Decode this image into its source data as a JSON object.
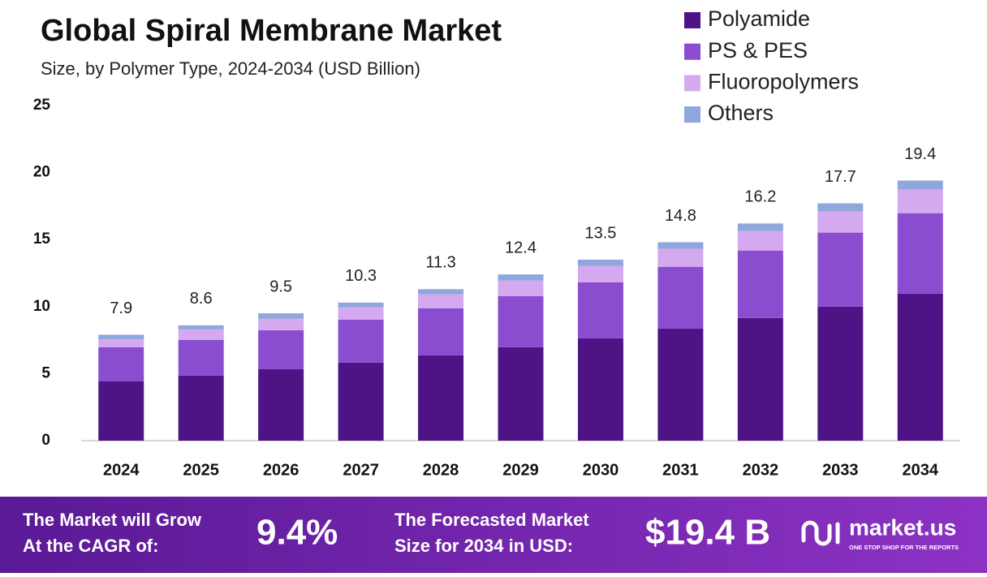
{
  "chart_data": {
    "type": "stacked_bar",
    "title": "Global Spiral Membrane Market",
    "subtitle": "Size, by  Polymer Type, 2024-2034 (USD Billion)",
    "categories": [
      "2024",
      "2025",
      "2026",
      "2027",
      "2028",
      "2029",
      "2030",
      "2031",
      "2032",
      "2033",
      "2034"
    ],
    "series": [
      {
        "name": "Polyamide",
        "color": "#4e1485",
        "values": [
          4.42,
          4.85,
          5.33,
          5.82,
          6.36,
          6.97,
          7.64,
          8.36,
          9.15,
          10.0,
          10.97
        ]
      },
      {
        "name": "PS & PES",
        "color": "#8a4dd0",
        "values": [
          2.55,
          2.67,
          2.91,
          3.21,
          3.52,
          3.82,
          4.18,
          4.61,
          5.03,
          5.52,
          6.0
        ]
      },
      {
        "name": "Fluoropolymers",
        "color": "#d4a9ef",
        "values": [
          0.6,
          0.78,
          0.85,
          0.91,
          1.03,
          1.15,
          1.21,
          1.33,
          1.46,
          1.57,
          1.76
        ]
      },
      {
        "name": "Others",
        "color": "#8fa7dc",
        "values": [
          0.33,
          0.3,
          0.41,
          0.36,
          0.39,
          0.46,
          0.47,
          0.5,
          0.56,
          0.61,
          0.67
        ]
      }
    ],
    "totals": [
      7.9,
      8.6,
      9.5,
      10.3,
      11.3,
      12.4,
      13.5,
      14.8,
      16.2,
      17.7,
      19.4
    ],
    "ylim": [
      0,
      25
    ],
    "yticks": [
      0,
      5,
      10,
      15,
      20,
      25
    ],
    "grid": false,
    "legend": "top-right"
  },
  "footer": {
    "cagr_label": [
      "The Market will Grow",
      "At the CAGR of:"
    ],
    "cagr_value": "9.4%",
    "forecast_label": [
      "The Forecasted Market",
      "Size for 2034 in USD:"
    ],
    "forecast_value": "$19.4 B",
    "brand": "market.us",
    "tagline": "ONE STOP SHOP FOR THE REPORTS"
  }
}
